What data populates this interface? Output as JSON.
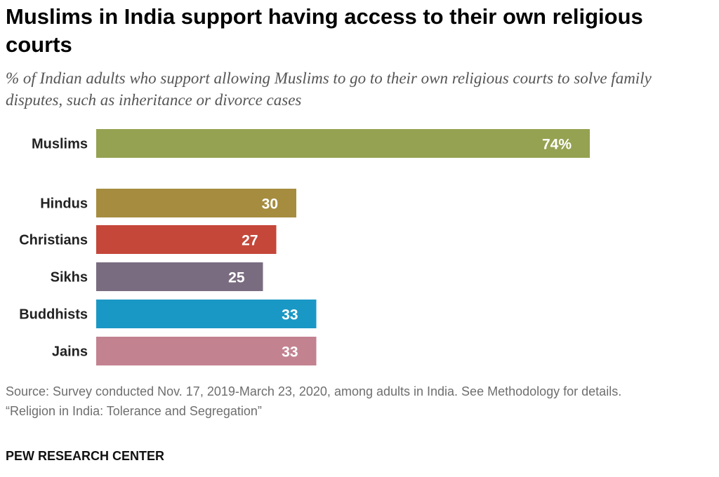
{
  "header": {
    "title": "Muslims in India support having access to their own religious courts",
    "subtitle": "% of Indian adults who support allowing Muslims to go to their own religious courts to solve family disputes, such as inheritance or divorce cases"
  },
  "chart_data": {
    "type": "bar",
    "orientation": "horizontal",
    "title": "Muslims in India support having access to their own religious courts",
    "subtitle": "% of Indian adults who support allowing Muslims to go to their own religious courts to solve family disputes, such as inheritance or divorce cases",
    "xlabel": "",
    "ylabel": "",
    "xlim": [
      0,
      100
    ],
    "grid": false,
    "categories": [
      "Muslims",
      "Hindus",
      "Christians",
      "Sikhs",
      "Buddhists",
      "Jains"
    ],
    "values": [
      74,
      30,
      27,
      25,
      33,
      33
    ],
    "value_labels": [
      "74%",
      "30",
      "27",
      "25",
      "33",
      "33"
    ],
    "colors": [
      "#95a251",
      "#a68c3f",
      "#c4473a",
      "#7a6c80",
      "#1a98c5",
      "#c38290"
    ]
  },
  "footer": {
    "source": "Source: Survey conducted Nov. 17, 2019-March 23, 2020, among adults in India. See Methodology for details.",
    "report": "“Religion in India: Tolerance and Segregation”",
    "brand": "PEW RESEARCH CENTER"
  }
}
